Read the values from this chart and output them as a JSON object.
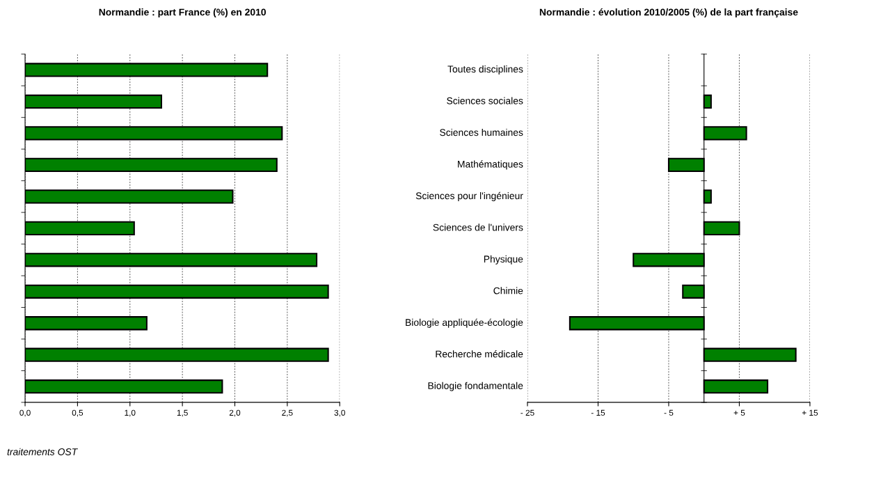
{
  "chart_data": [
    {
      "type": "bar",
      "orientation": "horizontal",
      "title": "Normandie : part France (%) en 2010",
      "categories": [
        null,
        null,
        null,
        null,
        null,
        null,
        null,
        null,
        null,
        null,
        null
      ],
      "values": [
        2.31,
        1.3,
        2.45,
        2.4,
        1.98,
        1.04,
        2.78,
        2.89,
        1.16,
        2.89,
        1.88
      ],
      "color": "#008000",
      "xlim": [
        0,
        3
      ],
      "xticks": [
        {
          "value": 0,
          "label": "0,0"
        },
        {
          "value": 0.5,
          "label": "0,5"
        },
        {
          "value": 1,
          "label": "1,0"
        },
        {
          "value": 1.5,
          "label": "1,5"
        },
        {
          "value": 2,
          "label": "2,0"
        },
        {
          "value": 2.5,
          "label": "2,5"
        },
        {
          "value": 3,
          "label": "3,0"
        }
      ],
      "grid": "x",
      "annotations": [
        "traitements OST"
      ]
    },
    {
      "type": "bar",
      "orientation": "horizontal",
      "title": "Normandie : évolution 2010/2005 (%) de la part française",
      "categories": [
        "Toutes disciplines",
        "Sciences sociales",
        "Sciences humaines",
        "Mathématiques",
        "Sciences pour l'ingénieur",
        "Sciences de l'univers",
        "Physique",
        "Chimie",
        "Biologie appliquée-écologie",
        "Recherche médicale",
        "Biologie fondamentale"
      ],
      "values": [
        null,
        1.0,
        6.0,
        -5.0,
        1.0,
        5.0,
        -10.0,
        -3.0,
        -19.0,
        13.0,
        9.0
      ],
      "color": "#008000",
      "xlim": [
        -25,
        15
      ],
      "xticks": [
        {
          "value": -25,
          "label": "- 25"
        },
        {
          "value": -15,
          "label": "- 15"
        },
        {
          "value": -5,
          "label": "- 5"
        },
        {
          "value": 5,
          "label": "+ 5"
        },
        {
          "value": 15,
          "label": "+ 15"
        }
      ],
      "grid": "x"
    }
  ]
}
